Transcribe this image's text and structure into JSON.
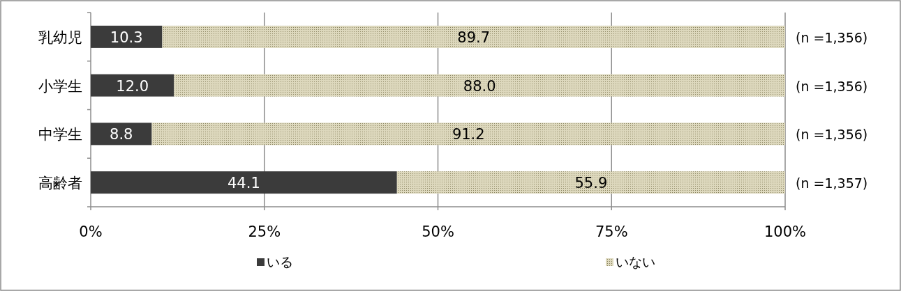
{
  "chart_data": {
    "type": "bar",
    "orientation": "horizontal",
    "stacked": true,
    "categories": [
      "乳幼児",
      "小学生",
      "中学生",
      "高齢者"
    ],
    "series": [
      {
        "name": "いる",
        "color": "#3b3b3b",
        "values": [
          10.3,
          12.0,
          8.8,
          44.1
        ],
        "value_labels": [
          "10.3",
          "12.0",
          "8.8",
          "44.1"
        ]
      },
      {
        "name": "いない",
        "color": "#ddd8bd",
        "values": [
          89.7,
          88.0,
          91.2,
          55.9
        ],
        "value_labels": [
          "89.7",
          "88.0",
          "91.2",
          "55.9"
        ]
      }
    ],
    "xlim": [
      0,
      100
    ],
    "xticks": [
      {
        "value": 0,
        "label": "0%"
      },
      {
        "value": 25,
        "label": "25%"
      },
      {
        "value": 50,
        "label": "50%"
      },
      {
        "value": 75,
        "label": "75%"
      },
      {
        "value": 100,
        "label": "100%"
      }
    ],
    "grid": "x",
    "legend": "bottom",
    "annotations": [
      "(n =1,356)",
      "(n =1,356)",
      "(n =1,356)",
      "(n =1,357)"
    ]
  }
}
